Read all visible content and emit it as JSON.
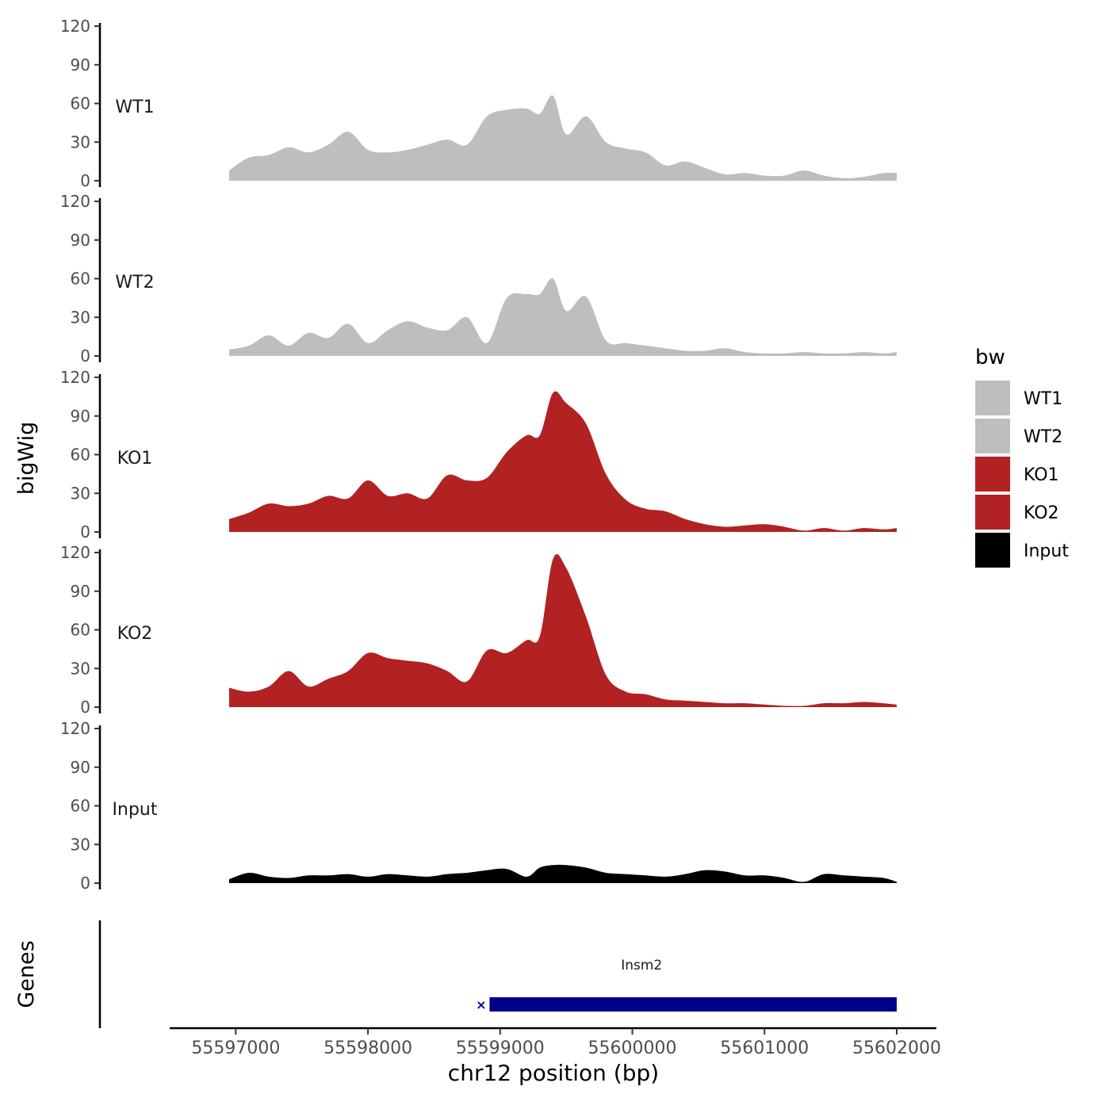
{
  "chart_data": {
    "type": "area",
    "title": "",
    "ylabel": "bigWig",
    "xlabel": "chr12 position (bp)",
    "xlim": [
      55596500,
      55602300
    ],
    "ylim": [
      0,
      120
    ],
    "yticks": [
      0,
      30,
      60,
      90,
      120
    ],
    "xticks": [
      55597000,
      55598000,
      55599000,
      55600000,
      55601000,
      55602000
    ],
    "xtick_labels": [
      "55597000",
      "55598000",
      "55599000",
      "55600000",
      "55601000",
      "55602000"
    ],
    "legend": {
      "title": "bw",
      "position": "right",
      "entries": [
        {
          "label": "WT1",
          "color": "#bebebe"
        },
        {
          "label": "WT2",
          "color": "#bebebe"
        },
        {
          "label": "KO1",
          "color": "#b22222"
        },
        {
          "label": "KO2",
          "color": "#b22222"
        },
        {
          "label": "Input",
          "color": "#000000"
        }
      ]
    },
    "tracks": [
      {
        "name": "WT1",
        "color": "#bebebe",
        "x": [
          55596950,
          55597100,
          55597250,
          55597400,
          55597550,
          55597700,
          55597850,
          55598000,
          55598150,
          55598300,
          55598450,
          55598600,
          55598750,
          55598900,
          55599050,
          55599200,
          55599300,
          55599400,
          55599500,
          55599650,
          55599800,
          55599950,
          55600100,
          55600250,
          55600400,
          55600550,
          55600700,
          55600850,
          55601000,
          55601150,
          55601300,
          55601450,
          55601600,
          55601750,
          55601900,
          55602000
        ],
        "y": [
          8,
          18,
          20,
          26,
          22,
          28,
          38,
          24,
          22,
          24,
          28,
          32,
          28,
          50,
          55,
          56,
          52,
          66,
          36,
          50,
          30,
          25,
          22,
          12,
          15,
          10,
          5,
          6,
          4,
          4,
          8,
          4,
          2,
          3,
          6,
          6
        ]
      },
      {
        "name": "WT2",
        "color": "#bebebe",
        "x": [
          55596950,
          55597100,
          55597250,
          55597400,
          55597550,
          55597700,
          55597850,
          55598000,
          55598150,
          55598300,
          55598450,
          55598600,
          55598750,
          55598900,
          55599050,
          55599200,
          55599300,
          55599400,
          55599500,
          55599650,
          55599800,
          55599950,
          55600100,
          55600250,
          55600400,
          55600550,
          55600700,
          55600850,
          55601000,
          55601150,
          55601300,
          55601450,
          55601600,
          55601750,
          55601900,
          55602000
        ],
        "y": [
          5,
          8,
          16,
          8,
          18,
          14,
          25,
          10,
          20,
          27,
          22,
          20,
          30,
          10,
          45,
          48,
          48,
          60,
          35,
          46,
          12,
          10,
          8,
          6,
          4,
          4,
          6,
          3,
          2,
          2,
          3,
          2,
          2,
          3,
          2,
          3
        ]
      },
      {
        "name": "KO1",
        "color": "#b22222",
        "x": [
          55596950,
          55597100,
          55597250,
          55597400,
          55597550,
          55597700,
          55597850,
          55598000,
          55598150,
          55598300,
          55598450,
          55598600,
          55598750,
          55598900,
          55599050,
          55599200,
          55599300,
          55599400,
          55599500,
          55599650,
          55599800,
          55599950,
          55600100,
          55600250,
          55600400,
          55600550,
          55600700,
          55600850,
          55601000,
          55601150,
          55601300,
          55601450,
          55601600,
          55601750,
          55601900,
          55602000
        ],
        "y": [
          10,
          15,
          22,
          20,
          22,
          28,
          26,
          40,
          28,
          30,
          26,
          44,
          40,
          42,
          62,
          75,
          75,
          108,
          100,
          84,
          45,
          25,
          18,
          16,
          10,
          6,
          4,
          5,
          6,
          4,
          1,
          3,
          1,
          3,
          2,
          3
        ]
      },
      {
        "name": "KO2",
        "color": "#b22222",
        "x": [
          55596950,
          55597100,
          55597250,
          55597400,
          55597550,
          55597700,
          55597850,
          55598000,
          55598150,
          55598300,
          55598450,
          55598600,
          55598750,
          55598900,
          55599050,
          55599200,
          55599300,
          55599400,
          55599500,
          55599650,
          55599800,
          55599950,
          55600100,
          55600250,
          55600400,
          55600550,
          55600700,
          55600850,
          55601000,
          55601150,
          55601300,
          55601450,
          55601600,
          55601750,
          55601900,
          55602000
        ],
        "y": [
          15,
          12,
          16,
          28,
          16,
          22,
          28,
          42,
          38,
          36,
          34,
          28,
          20,
          44,
          42,
          52,
          55,
          115,
          108,
          70,
          25,
          12,
          10,
          6,
          5,
          4,
          3,
          3,
          2,
          1,
          1,
          3,
          3,
          4,
          3,
          2
        ]
      },
      {
        "name": "Input",
        "color": "#000000",
        "x": [
          55596950,
          55597100,
          55597250,
          55597400,
          55597550,
          55597700,
          55597850,
          55598000,
          55598150,
          55598300,
          55598450,
          55598600,
          55598750,
          55598900,
          55599050,
          55599200,
          55599300,
          55599400,
          55599500,
          55599650,
          55599800,
          55599950,
          55600100,
          55600250,
          55600400,
          55600550,
          55600700,
          55600850,
          55601000,
          55601150,
          55601300,
          55601450,
          55601600,
          55601750,
          55601900,
          55602000
        ],
        "y": [
          3,
          8,
          5,
          4,
          6,
          6,
          7,
          5,
          7,
          6,
          5,
          7,
          8,
          10,
          11,
          5,
          12,
          14,
          14,
          12,
          8,
          7,
          6,
          5,
          7,
          10,
          9,
          6,
          6,
          4,
          1,
          7,
          6,
          5,
          4,
          1
        ]
      }
    ],
    "genes": {
      "label": "Genes",
      "items": [
        {
          "name": "Insm2",
          "start": 55598920,
          "end": 55602000,
          "strand": "+",
          "color": "#00008b"
        }
      ]
    }
  }
}
